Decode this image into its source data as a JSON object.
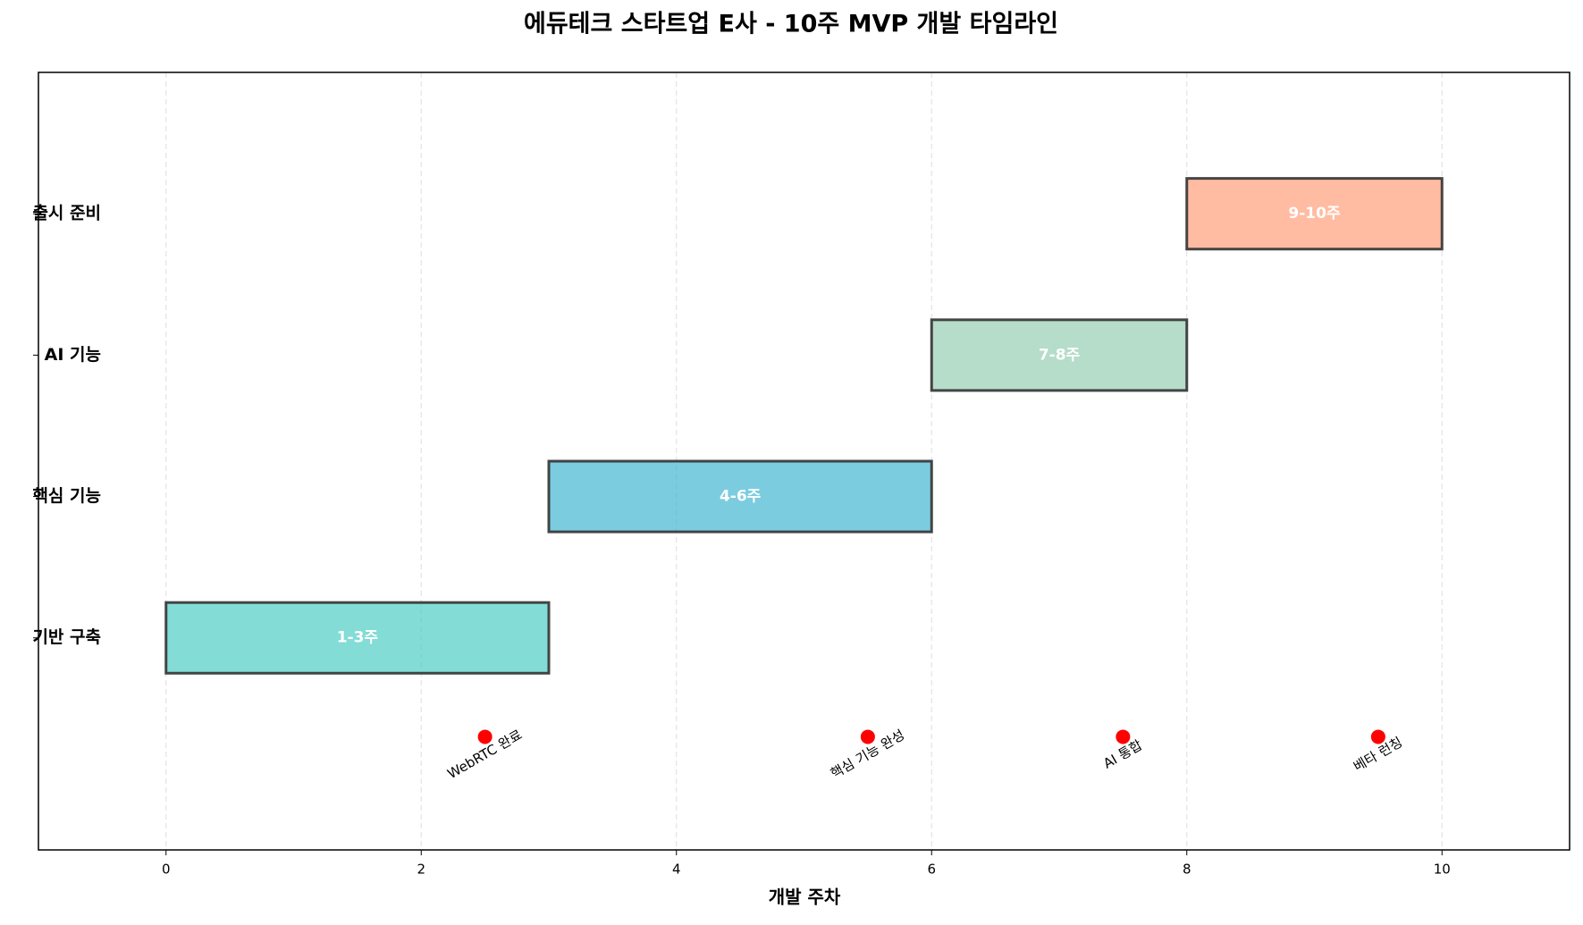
{
  "chart_data": {
    "type": "gantt",
    "title": "에듀테크 스타트업 E사 - 10주 MVP 개발 타임라인",
    "xlabel": "개발 주차",
    "categories": [
      "기반 구축",
      "핵심 기능",
      "AI 기능",
      "출시 준비"
    ],
    "starts": [
      0,
      3,
      6,
      8
    ],
    "durations": [
      3,
      3,
      2,
      2
    ],
    "value_labels": [
      "1-3주",
      "4-6주",
      "7-8주",
      "9-10주"
    ],
    "colors": [
      "#4ecdc4",
      "#45b7d1",
      "#96ceb4",
      "#ffa07a"
    ],
    "milestones": {
      "x": [
        2.5,
        5.5,
        7.5,
        9.5
      ],
      "y": [
        -0.7,
        -0.7,
        -0.7,
        -0.7
      ],
      "labels": [
        "WebRTC 완료",
        "핵심 기능 완성",
        "AI 통합",
        "베타 런칭"
      ],
      "color": "#ff0000"
    },
    "xlim": [
      -1,
      11
    ],
    "ylim": [
      -1.5,
      4
    ],
    "xticks": [
      0,
      2,
      4,
      6,
      8,
      10
    ],
    "grid": true
  }
}
